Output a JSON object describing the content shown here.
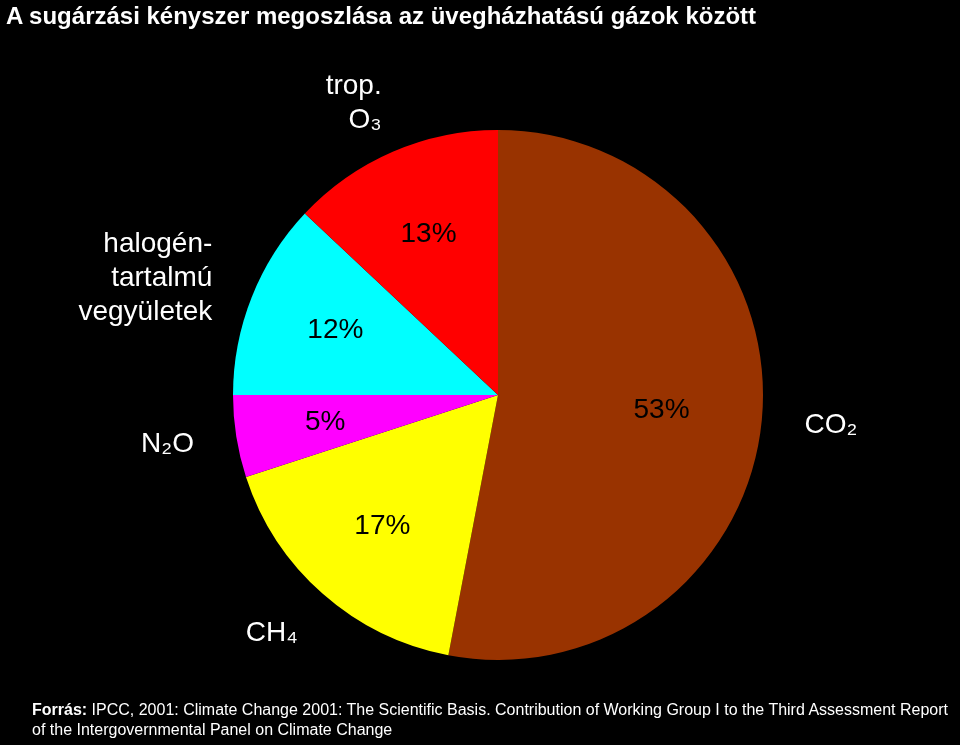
{
  "chart_data": {
    "type": "pie",
    "title": "A sugárzási kényszer megoszlása az üvegházhatású gázok között",
    "categories": [
      "CO₂",
      "CH₄",
      "N₂O",
      "halogén-tartalmú vegyületek",
      "trop. O₃"
    ],
    "values": [
      53,
      17,
      5,
      12,
      13
    ],
    "value_labels": [
      "53%",
      "17%",
      "5%",
      "12%",
      "13%"
    ],
    "colors": [
      "#993300",
      "#ffff00",
      "#ff00ff",
      "#00ffff",
      "#ff0000"
    ],
    "data_labels": true,
    "source": "Forrás: IPCC, 2001: Climate Change 2001: The Scientific Basis. Contribution of Working Group I to the Third Assessment Report of the Intergovernmental Panel on Climate Change"
  }
}
